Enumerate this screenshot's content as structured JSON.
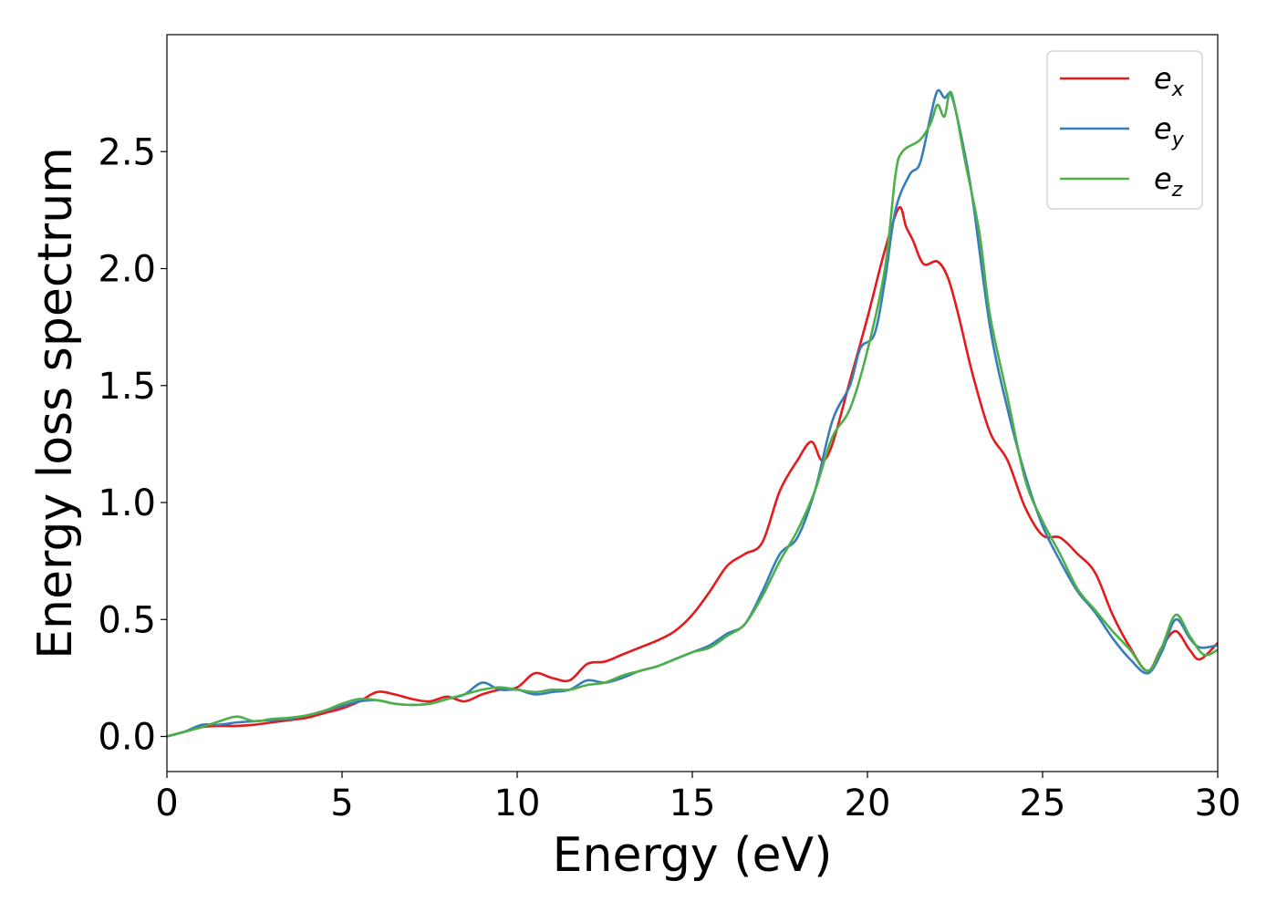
{
  "chart_data": {
    "type": "line",
    "title": "",
    "xlabel": "Energy (eV)",
    "ylabel": "Energy loss spectrum",
    "xlim": [
      0,
      30
    ],
    "ylim": [
      -0.15,
      3.0
    ],
    "xticks": [
      0,
      5,
      10,
      15,
      20,
      25,
      30
    ],
    "xtick_labels": [
      "0",
      "5",
      "10",
      "15",
      "20",
      "25",
      "30"
    ],
    "yticks": [
      0.0,
      0.5,
      1.0,
      1.5,
      2.0,
      2.5
    ],
    "ytick_labels": [
      "0.0",
      "0.5",
      "1.0",
      "1.5",
      "2.0",
      "2.5"
    ],
    "grid": false,
    "legend_position": "top-right",
    "series": [
      {
        "name": "e_x",
        "legend_base": "e",
        "legend_sub": "x",
        "color": "#e41a1c",
        "points": [
          [
            0,
            0.0
          ],
          [
            0.5,
            0.02
          ],
          [
            1.0,
            0.04
          ],
          [
            1.5,
            0.045
          ],
          [
            2.0,
            0.045
          ],
          [
            2.5,
            0.05
          ],
          [
            3.0,
            0.06
          ],
          [
            3.5,
            0.07
          ],
          [
            4.0,
            0.08
          ],
          [
            4.5,
            0.1
          ],
          [
            5.0,
            0.12
          ],
          [
            5.5,
            0.15
          ],
          [
            6.0,
            0.19
          ],
          [
            6.5,
            0.18
          ],
          [
            7.0,
            0.16
          ],
          [
            7.5,
            0.15
          ],
          [
            8.0,
            0.17
          ],
          [
            8.5,
            0.15
          ],
          [
            9.0,
            0.18
          ],
          [
            9.5,
            0.2
          ],
          [
            10.0,
            0.21
          ],
          [
            10.5,
            0.27
          ],
          [
            11.0,
            0.25
          ],
          [
            11.5,
            0.24
          ],
          [
            12.0,
            0.31
          ],
          [
            12.5,
            0.32
          ],
          [
            13.0,
            0.35
          ],
          [
            13.5,
            0.38
          ],
          [
            14.0,
            0.41
          ],
          [
            14.5,
            0.45
          ],
          [
            15.0,
            0.52
          ],
          [
            15.5,
            0.62
          ],
          [
            16.0,
            0.73
          ],
          [
            16.5,
            0.78
          ],
          [
            17.0,
            0.83
          ],
          [
            17.5,
            1.05
          ],
          [
            18.0,
            1.18
          ],
          [
            18.4,
            1.26
          ],
          [
            18.7,
            1.18
          ],
          [
            19.0,
            1.25
          ],
          [
            19.5,
            1.52
          ],
          [
            20.0,
            1.79
          ],
          [
            20.5,
            2.08
          ],
          [
            20.9,
            2.26
          ],
          [
            21.1,
            2.18
          ],
          [
            21.3,
            2.12
          ],
          [
            21.6,
            2.02
          ],
          [
            22.0,
            2.03
          ],
          [
            22.3,
            1.96
          ],
          [
            22.6,
            1.8
          ],
          [
            23.0,
            1.55
          ],
          [
            23.5,
            1.3
          ],
          [
            24.0,
            1.18
          ],
          [
            24.5,
            0.98
          ],
          [
            25.0,
            0.86
          ],
          [
            25.5,
            0.85
          ],
          [
            26.0,
            0.78
          ],
          [
            26.5,
            0.7
          ],
          [
            27.0,
            0.52
          ],
          [
            27.5,
            0.38
          ],
          [
            28.0,
            0.28
          ],
          [
            28.4,
            0.38
          ],
          [
            28.8,
            0.45
          ],
          [
            29.2,
            0.37
          ],
          [
            29.5,
            0.33
          ],
          [
            30.0,
            0.4
          ]
        ]
      },
      {
        "name": "e_y",
        "legend_base": "e",
        "legend_sub": "y",
        "color": "#377eb8",
        "points": [
          [
            0,
            0.0
          ],
          [
            0.5,
            0.02
          ],
          [
            1.0,
            0.05
          ],
          [
            1.5,
            0.05
          ],
          [
            2.0,
            0.06
          ],
          [
            2.5,
            0.065
          ],
          [
            3.0,
            0.07
          ],
          [
            3.5,
            0.075
          ],
          [
            4.0,
            0.09
          ],
          [
            4.5,
            0.11
          ],
          [
            5.0,
            0.13
          ],
          [
            5.5,
            0.15
          ],
          [
            6.0,
            0.155
          ],
          [
            6.5,
            0.14
          ],
          [
            7.0,
            0.135
          ],
          [
            7.5,
            0.14
          ],
          [
            8.0,
            0.16
          ],
          [
            8.5,
            0.18
          ],
          [
            9.0,
            0.23
          ],
          [
            9.5,
            0.2
          ],
          [
            10.0,
            0.2
          ],
          [
            10.5,
            0.18
          ],
          [
            11.0,
            0.19
          ],
          [
            11.5,
            0.2
          ],
          [
            12.0,
            0.24
          ],
          [
            12.5,
            0.23
          ],
          [
            13.0,
            0.25
          ],
          [
            13.5,
            0.28
          ],
          [
            14.0,
            0.3
          ],
          [
            14.5,
            0.33
          ],
          [
            15.0,
            0.36
          ],
          [
            15.5,
            0.39
          ],
          [
            16.0,
            0.44
          ],
          [
            16.5,
            0.48
          ],
          [
            17.0,
            0.62
          ],
          [
            17.5,
            0.78
          ],
          [
            18.0,
            0.85
          ],
          [
            18.5,
            1.05
          ],
          [
            19.0,
            1.35
          ],
          [
            19.5,
            1.5
          ],
          [
            19.8,
            1.66
          ],
          [
            20.2,
            1.72
          ],
          [
            20.5,
            1.95
          ],
          [
            20.8,
            2.25
          ],
          [
            21.2,
            2.4
          ],
          [
            21.5,
            2.45
          ],
          [
            21.8,
            2.65
          ],
          [
            22.0,
            2.76
          ],
          [
            22.2,
            2.73
          ],
          [
            22.4,
            2.74
          ],
          [
            22.7,
            2.55
          ],
          [
            23.0,
            2.3
          ],
          [
            23.5,
            1.75
          ],
          [
            24.0,
            1.4
          ],
          [
            24.5,
            1.12
          ],
          [
            25.0,
            0.9
          ],
          [
            25.5,
            0.75
          ],
          [
            26.0,
            0.62
          ],
          [
            26.5,
            0.53
          ],
          [
            27.0,
            0.42
          ],
          [
            27.5,
            0.33
          ],
          [
            28.0,
            0.27
          ],
          [
            28.4,
            0.36
          ],
          [
            28.8,
            0.5
          ],
          [
            29.2,
            0.42
          ],
          [
            29.5,
            0.38
          ],
          [
            30.0,
            0.39
          ]
        ]
      },
      {
        "name": "e_z",
        "legend_base": "e",
        "legend_sub": "z",
        "color": "#4daf4a",
        "points": [
          [
            0,
            0.0
          ],
          [
            0.5,
            0.02
          ],
          [
            1.0,
            0.04
          ],
          [
            1.5,
            0.065
          ],
          [
            2.0,
            0.085
          ],
          [
            2.5,
            0.065
          ],
          [
            3.0,
            0.075
          ],
          [
            3.5,
            0.08
          ],
          [
            4.0,
            0.09
          ],
          [
            4.5,
            0.11
          ],
          [
            5.0,
            0.14
          ],
          [
            5.5,
            0.16
          ],
          [
            6.0,
            0.155
          ],
          [
            6.5,
            0.14
          ],
          [
            7.0,
            0.135
          ],
          [
            7.5,
            0.14
          ],
          [
            8.0,
            0.16
          ],
          [
            8.5,
            0.18
          ],
          [
            9.0,
            0.2
          ],
          [
            9.5,
            0.21
          ],
          [
            10.0,
            0.2
          ],
          [
            10.5,
            0.19
          ],
          [
            11.0,
            0.2
          ],
          [
            11.5,
            0.2
          ],
          [
            12.0,
            0.22
          ],
          [
            12.5,
            0.23
          ],
          [
            13.0,
            0.26
          ],
          [
            13.5,
            0.28
          ],
          [
            14.0,
            0.3
          ],
          [
            14.5,
            0.33
          ],
          [
            15.0,
            0.36
          ],
          [
            15.5,
            0.38
          ],
          [
            16.0,
            0.43
          ],
          [
            16.5,
            0.48
          ],
          [
            17.0,
            0.6
          ],
          [
            17.5,
            0.75
          ],
          [
            18.0,
            0.88
          ],
          [
            18.5,
            1.05
          ],
          [
            19.0,
            1.28
          ],
          [
            19.5,
            1.4
          ],
          [
            20.0,
            1.65
          ],
          [
            20.5,
            2.0
          ],
          [
            20.8,
            2.4
          ],
          [
            21.0,
            2.5
          ],
          [
            21.5,
            2.55
          ],
          [
            21.8,
            2.62
          ],
          [
            22.0,
            2.7
          ],
          [
            22.2,
            2.65
          ],
          [
            22.4,
            2.75
          ],
          [
            22.8,
            2.45
          ],
          [
            23.2,
            2.15
          ],
          [
            23.5,
            1.8
          ],
          [
            24.0,
            1.45
          ],
          [
            24.5,
            1.1
          ],
          [
            25.0,
            0.92
          ],
          [
            25.5,
            0.78
          ],
          [
            26.0,
            0.63
          ],
          [
            26.5,
            0.54
          ],
          [
            27.0,
            0.45
          ],
          [
            27.5,
            0.37
          ],
          [
            28.0,
            0.28
          ],
          [
            28.4,
            0.38
          ],
          [
            28.8,
            0.52
          ],
          [
            29.2,
            0.43
          ],
          [
            29.6,
            0.35
          ],
          [
            30.0,
            0.37
          ]
        ]
      }
    ]
  }
}
